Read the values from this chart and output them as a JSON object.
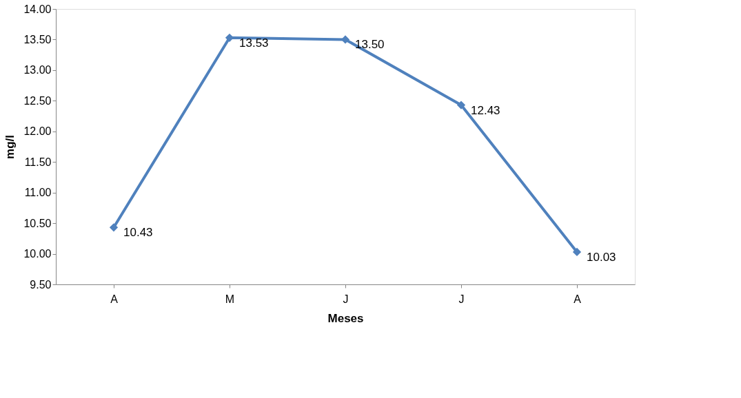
{
  "chart_data": {
    "type": "line",
    "xlabel": "Meses",
    "ylabel": "mg/l",
    "categories": [
      "A",
      "M",
      "J",
      "J",
      "A"
    ],
    "series": [
      {
        "color": "#4f81bd",
        "values": [
          10.43,
          13.53,
          13.5,
          12.43,
          10.03
        ],
        "value_labels": [
          "10.43",
          "13.53",
          "13.50",
          "12.43",
          "10.03"
        ]
      }
    ],
    "ylim": [
      9.5,
      14
    ],
    "yticks": [
      {
        "value": 9.5,
        "label": "9.50"
      },
      {
        "value": 10,
        "label": "10.00"
      },
      {
        "value": 10.5,
        "label": "10.50"
      },
      {
        "value": 11,
        "label": "11.00"
      },
      {
        "value": 11.5,
        "label": "11.50"
      },
      {
        "value": 12,
        "label": "12.00"
      },
      {
        "value": 12.5,
        "label": "12.50"
      },
      {
        "value": 13,
        "label": "13.00"
      },
      {
        "value": 13.5,
        "label": "13.50"
      },
      {
        "value": 14,
        "label": "14.00"
      }
    ],
    "grid": false,
    "marker": "diamond",
    "line_style": "solid"
  }
}
